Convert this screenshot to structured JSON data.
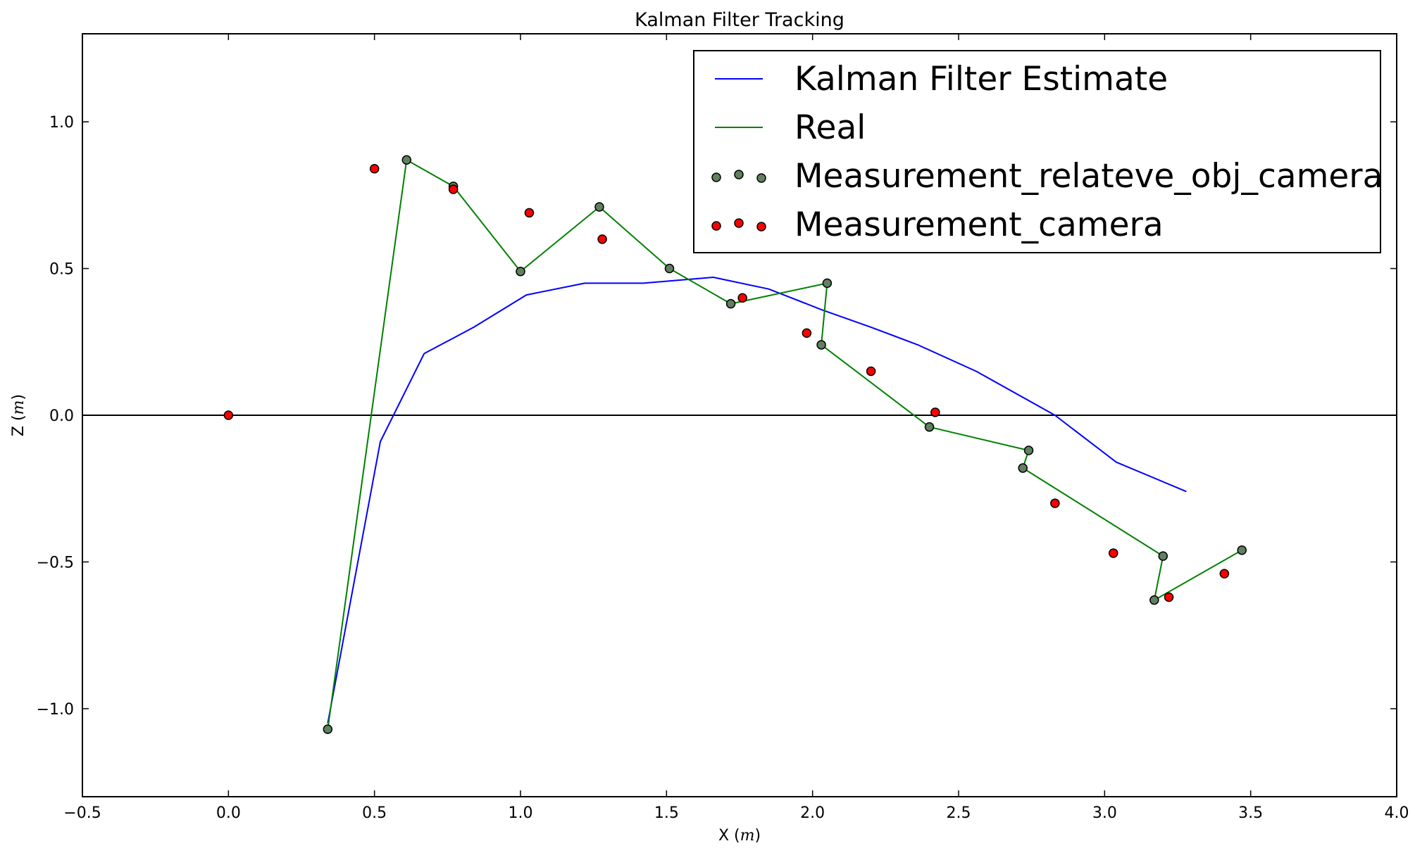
{
  "chart_data": {
    "type": "scatter",
    "title": "Kalman Filter Tracking",
    "xlabel": "X",
    "ylabel": "Z",
    "xunit": "m",
    "yunit": "m",
    "xlim": [
      -0.5,
      4.0
    ],
    "ylim": [
      -1.3,
      1.3
    ],
    "xticks": [
      -0.5,
      0.0,
      0.5,
      1.0,
      1.5,
      2.0,
      2.5,
      3.0,
      3.5,
      4.0
    ],
    "xtick_labels": [
      "−0.5",
      "0.0",
      "0.5",
      "1.0",
      "1.5",
      "2.0",
      "2.5",
      "3.0",
      "3.5",
      "4.0"
    ],
    "yticks": [
      -1.0,
      -0.5,
      0.0,
      0.5,
      1.0
    ],
    "ytick_labels": [
      "−1.0",
      "−0.5",
      "0.0",
      "0.5",
      "1.0"
    ],
    "grid": false,
    "hline_y": 0,
    "legend_position": "top-right",
    "series": [
      {
        "name": "Kalman Filter Estimate",
        "type": "line",
        "color": "#0000ff",
        "points": [
          [
            0.34,
            -1.05
          ],
          [
            0.52,
            -0.09
          ],
          [
            0.67,
            0.21
          ],
          [
            0.84,
            0.3
          ],
          [
            1.02,
            0.41
          ],
          [
            1.22,
            0.45
          ],
          [
            1.42,
            0.45
          ],
          [
            1.66,
            0.47
          ],
          [
            1.85,
            0.43
          ],
          [
            2.03,
            0.36
          ],
          [
            2.2,
            0.3
          ],
          [
            2.36,
            0.24
          ],
          [
            2.56,
            0.15
          ],
          [
            2.83,
            0.0
          ],
          [
            3.04,
            -0.16
          ],
          [
            3.28,
            -0.26
          ]
        ]
      },
      {
        "name": "Real",
        "type": "line",
        "color": "#008000",
        "points": [
          [
            0.34,
            -1.07
          ],
          [
            0.61,
            0.87
          ],
          [
            0.77,
            0.78
          ],
          [
            1.0,
            0.49
          ],
          [
            1.27,
            0.71
          ],
          [
            1.51,
            0.5
          ],
          [
            1.72,
            0.38
          ],
          [
            2.05,
            0.45
          ],
          [
            2.03,
            0.24
          ],
          [
            2.4,
            -0.04
          ],
          [
            2.74,
            -0.12
          ],
          [
            2.72,
            -0.18
          ],
          [
            3.2,
            -0.48
          ],
          [
            3.17,
            -0.63
          ],
          [
            3.47,
            -0.46
          ]
        ]
      },
      {
        "name": "Measurement_relateve_obj_camera",
        "type": "scatter",
        "color": "#608060",
        "points": [
          [
            0.34,
            -1.07
          ],
          [
            0.61,
            0.87
          ],
          [
            0.77,
            0.78
          ],
          [
            1.0,
            0.49
          ],
          [
            1.27,
            0.71
          ],
          [
            1.51,
            0.5
          ],
          [
            1.72,
            0.38
          ],
          [
            2.05,
            0.45
          ],
          [
            2.03,
            0.24
          ],
          [
            2.4,
            -0.04
          ],
          [
            2.74,
            -0.12
          ],
          [
            2.72,
            -0.18
          ],
          [
            3.2,
            -0.48
          ],
          [
            3.17,
            -0.63
          ],
          [
            3.47,
            -0.46
          ]
        ]
      },
      {
        "name": "Measurement_camera",
        "type": "scatter",
        "color": "#ff0000",
        "points": [
          [
            0.0,
            0.0
          ],
          [
            0.5,
            0.84
          ],
          [
            0.77,
            0.77
          ],
          [
            1.03,
            0.69
          ],
          [
            1.28,
            0.6
          ],
          [
            1.76,
            0.4
          ],
          [
            1.98,
            0.28
          ],
          [
            2.2,
            0.15
          ],
          [
            2.42,
            0.01
          ],
          [
            2.83,
            -0.3
          ],
          [
            3.03,
            -0.47
          ],
          [
            3.22,
            -0.62
          ],
          [
            3.41,
            -0.54
          ]
        ]
      }
    ]
  }
}
